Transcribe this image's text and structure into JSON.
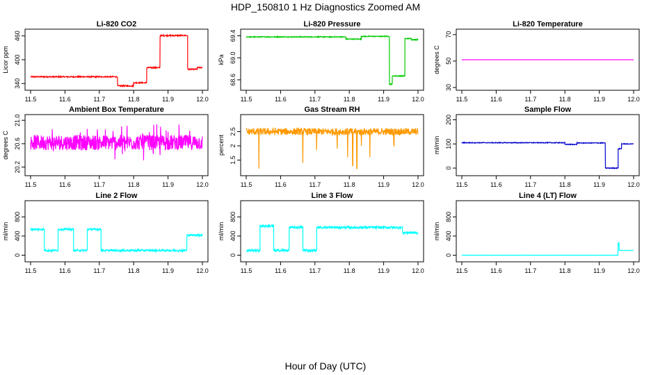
{
  "figure": {
    "title": "HDP_150810  1 Hz Diagnostics Zoomed AM",
    "xlabel": "Hour of Day (UTC)"
  },
  "chart_data": [
    {
      "type": "line",
      "title": "Li-820 CO2",
      "ylabel": "Licor ppm",
      "color": "#ff0000",
      "xlim": [
        11.5,
        12.0
      ],
      "ylim": [
        330,
        470
      ],
      "xticks": [
        "11.5",
        "11.6",
        "11.7",
        "11.8",
        "11.9",
        "12.0"
      ],
      "yticks": [
        340,
        400,
        460
      ],
      "ytick_labels": [
        "340",
        "400",
        "460"
      ],
      "segments": [
        [
          11.5,
          11.753,
          357
        ],
        [
          11.753,
          11.8,
          334
        ],
        [
          11.8,
          11.838,
          342
        ],
        [
          11.838,
          11.877,
          380
        ],
        [
          11.877,
          11.957,
          461
        ],
        [
          11.957,
          11.985,
          376
        ],
        [
          11.985,
          12.0,
          380
        ]
      ],
      "noise": 1.5
    },
    {
      "type": "line",
      "title": "Li-820 Pressure",
      "ylabel": "kPa",
      "color": "#00cc00",
      "xlim": [
        11.5,
        12.0
      ],
      "ylim": [
        68.46,
        69.47
      ],
      "xticks": [
        "11.5",
        "11.6",
        "11.7",
        "11.8",
        "11.9",
        "12.0"
      ],
      "yticks": [
        68.6,
        69.0,
        69.4
      ],
      "ytick_labels": [
        "68.6",
        "69.0",
        "69.4"
      ],
      "segments": [
        [
          11.5,
          11.79,
          69.38
        ],
        [
          11.79,
          11.835,
          69.34
        ],
        [
          11.835,
          11.917,
          69.39
        ],
        [
          11.917,
          11.925,
          68.52
        ],
        [
          11.925,
          11.962,
          68.67
        ],
        [
          11.962,
          11.98,
          69.35
        ],
        [
          11.98,
          12.0,
          69.33
        ]
      ],
      "noise": 0.008
    },
    {
      "type": "line",
      "title": "Li-820 Temperature",
      "ylabel": "degrees C",
      "color": "#ff00ff",
      "xlim": [
        11.5,
        12.0
      ],
      "ylim": [
        30,
        72
      ],
      "xticks": [
        "11.5",
        "11.6",
        "11.7",
        "11.8",
        "11.9",
        "12.0"
      ],
      "yticks": [
        30,
        50,
        70
      ],
      "ytick_labels": [
        "30",
        "50",
        "70"
      ],
      "segments": [
        [
          11.5,
          12.0,
          51
        ]
      ],
      "noise": 0
    },
    {
      "type": "line",
      "title": "Ambient Box Temperature",
      "ylabel": "degrees C",
      "color": "#ff00ff",
      "xlim": [
        11.5,
        12.0
      ],
      "ylim": [
        20.1,
        21.05
      ],
      "xticks": [
        "11.5",
        "11.6",
        "11.7",
        "11.8",
        "11.9",
        "12.0"
      ],
      "yticks": [
        20.2,
        20.6,
        21.0
      ],
      "ytick_labels": [
        "20.2",
        "20.6",
        "21.0"
      ],
      "segments": [
        [
          11.5,
          12.0,
          20.62
        ]
      ],
      "noise": 0.13,
      "spiky": true
    },
    {
      "type": "line",
      "title": "Gas Stream RH",
      "ylabel": "percent",
      "color": "#ff9900",
      "xlim": [
        11.5,
        12.0
      ],
      "ylim": [
        1.05,
        3.0
      ],
      "xticks": [
        "11.5",
        "11.6",
        "11.7",
        "11.8",
        "11.9",
        "12.0"
      ],
      "yticks": [
        1.5,
        2.0,
        2.5
      ],
      "ytick_labels": [
        "1.5",
        "2",
        "2.5"
      ],
      "segments": [
        [
          11.5,
          12.0,
          2.5
        ]
      ],
      "noise": 0.12,
      "dips": [
        [
          11.537,
          1.2
        ],
        [
          11.665,
          1.4
        ],
        [
          11.705,
          1.85
        ],
        [
          11.765,
          1.9
        ],
        [
          11.795,
          1.6
        ],
        [
          11.81,
          1.3
        ],
        [
          11.822,
          1.2
        ],
        [
          11.835,
          2.0
        ],
        [
          11.86,
          1.6
        ],
        [
          11.93,
          2.0
        ]
      ]
    },
    {
      "type": "line",
      "title": "Sample Flow",
      "ylabel": "ml/min",
      "color": "#0000cc",
      "xlim": [
        11.5,
        12.0
      ],
      "ylim": [
        -20,
        210
      ],
      "xticks": [
        "11.5",
        "11.6",
        "11.7",
        "11.8",
        "11.9",
        "12.0"
      ],
      "yticks": [
        0,
        100,
        200
      ],
      "ytick_labels": [
        "0",
        "100",
        "200"
      ],
      "segments": [
        [
          11.5,
          11.8,
          105
        ],
        [
          11.8,
          11.835,
          98
        ],
        [
          11.835,
          11.918,
          104
        ],
        [
          11.918,
          11.955,
          0
        ],
        [
          11.955,
          11.965,
          80
        ],
        [
          11.965,
          12.0,
          100
        ]
      ],
      "noise": 1.5
    },
    {
      "type": "line",
      "title": "Line 2 Flow",
      "ylabel": "ml/min",
      "color": "#00ffff",
      "xlim": [
        11.5,
        12.0
      ],
      "ylim": [
        -80,
        1080
      ],
      "xticks": [
        "11.5",
        "11.6",
        "11.7",
        "11.8",
        "11.9",
        "12.0"
      ],
      "yticks": [
        0,
        400,
        800
      ],
      "ytick_labels": [
        "0",
        "400",
        "800"
      ],
      "segments": [
        [
          11.5,
          11.54,
          540
        ],
        [
          11.54,
          11.58,
          100
        ],
        [
          11.58,
          11.625,
          540
        ],
        [
          11.625,
          11.665,
          100
        ],
        [
          11.665,
          11.705,
          540
        ],
        [
          11.705,
          11.955,
          100
        ],
        [
          11.955,
          12.0,
          420
        ]
      ],
      "noise": 20
    },
    {
      "type": "line",
      "title": "Line 3 Flow",
      "ylabel": "ml/min",
      "color": "#00ffff",
      "xlim": [
        11.5,
        12.0
      ],
      "ylim": [
        -80,
        1080
      ],
      "xticks": [
        "11.5",
        "11.6",
        "11.7",
        "11.8",
        "11.9",
        "12.0"
      ],
      "yticks": [
        0,
        400,
        800
      ],
      "ytick_labels": [
        "0",
        "400",
        "800"
      ],
      "segments": [
        [
          11.5,
          11.54,
          100
        ],
        [
          11.54,
          11.58,
          610
        ],
        [
          11.58,
          11.625,
          100
        ],
        [
          11.625,
          11.665,
          580
        ],
        [
          11.665,
          11.705,
          100
        ],
        [
          11.705,
          11.955,
          580
        ],
        [
          11.955,
          12.0,
          470
        ]
      ],
      "noise": 25
    },
    {
      "type": "line",
      "title": "Line 4 (LT) Flow",
      "ylabel": "ml/min",
      "color": "#00ffff",
      "xlim": [
        11.5,
        12.0
      ],
      "ylim": [
        -80,
        1080
      ],
      "xticks": [
        "11.5",
        "11.6",
        "11.7",
        "11.8",
        "11.9",
        "12.0"
      ],
      "yticks": [
        0,
        400,
        800
      ],
      "ytick_labels": [
        "0",
        "400",
        "800"
      ],
      "segments": [
        [
          11.5,
          11.955,
          0
        ],
        [
          11.955,
          11.958,
          260
        ],
        [
          11.958,
          12.0,
          100
        ]
      ],
      "noise": 2
    }
  ]
}
